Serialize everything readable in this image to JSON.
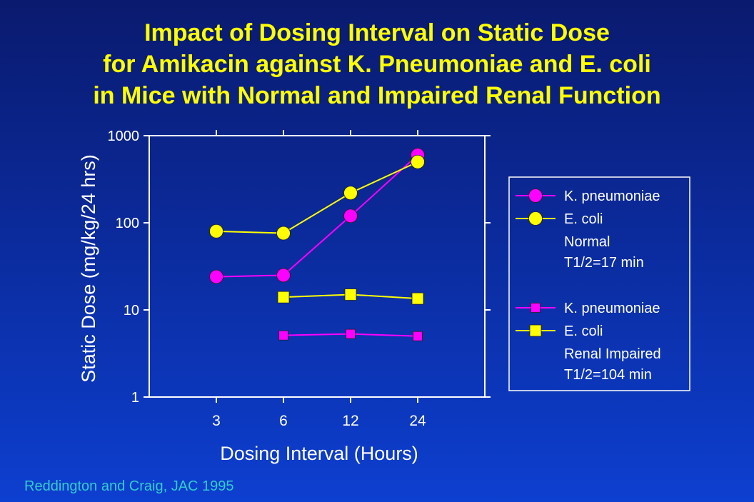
{
  "title_lines": [
    "Impact of Dosing Interval on Static Dose",
    "for Amikacin against K. Pneumoniae and E. coli",
    "in Mice with Normal and Impaired Renal Function"
  ],
  "source": "Reddington and Craig, JAC 1995",
  "chart_data": {
    "type": "line",
    "xlabel": "Dosing Interval (Hours)",
    "ylabel": "Static Dose (mg/kg/24 hrs)",
    "yscale": "log",
    "ylim": [
      1,
      1000
    ],
    "yticks": [
      "1",
      "10",
      "100",
      "1000"
    ],
    "categories": [
      "3",
      "6",
      "12",
      "24"
    ],
    "series": [
      {
        "name": "K. pneumoniae",
        "group": "Normal",
        "color": "#ff00ff",
        "marker": "circle",
        "values": [
          24,
          25,
          120,
          600
        ]
      },
      {
        "name": "E. coli",
        "group": "Normal",
        "color": "#ffff00",
        "marker": "circle",
        "values": [
          80,
          76,
          220,
          500
        ]
      },
      {
        "name": "K. pneumoniae",
        "group": "Renal Impaired",
        "color": "#ff00ff",
        "marker": "square",
        "values": [
          null,
          5.1,
          5.3,
          5.0
        ]
      },
      {
        "name": "E. coli",
        "group": "Renal Impaired",
        "color": "#ffff00",
        "marker": "square",
        "values": [
          null,
          14,
          15,
          13.5
        ]
      }
    ],
    "legend": {
      "position": "right",
      "groups": [
        {
          "label_lines": [
            "Normal",
            "T1/2=17 min"
          ],
          "series_idx": [
            0,
            1
          ]
        },
        {
          "label_lines": [
            "Renal Impaired",
            "T1/2=104 min"
          ],
          "series_idx": [
            2,
            3
          ]
        }
      ]
    }
  }
}
